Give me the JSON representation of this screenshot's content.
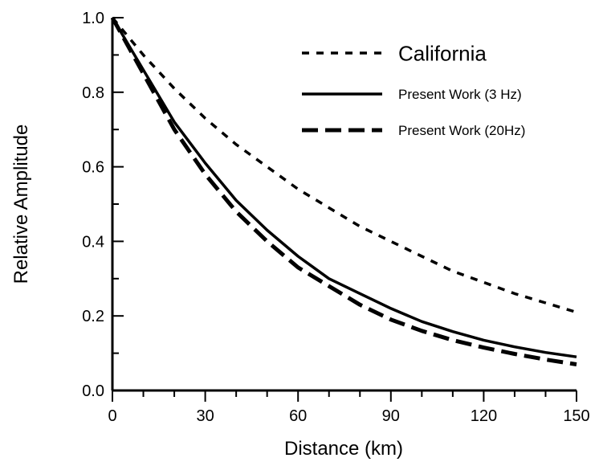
{
  "chart_data": {
    "type": "line",
    "title": "",
    "xlabel": "Distance (km)",
    "ylabel": "Relative Amplitude",
    "xlim": [
      0,
      150
    ],
    "ylim": [
      0,
      1.0
    ],
    "x_ticks": [
      0,
      30,
      60,
      90,
      120,
      150
    ],
    "x_tick_labels": [
      "0",
      "30",
      "60",
      "90",
      "120",
      "150"
    ],
    "y_ticks": [
      0.0,
      0.2,
      0.4,
      0.6,
      0.8,
      1.0
    ],
    "y_tick_labels": [
      "0.0",
      "0.2",
      "0.4",
      "0.6",
      "0.8",
      "1.0"
    ],
    "x_minor_step": 10,
    "y_minor_step": 0.1,
    "grid": false,
    "legend_position": "top-right",
    "series": [
      {
        "name": "California",
        "style": "dotted",
        "color": "#000000",
        "x": [
          0,
          10,
          20,
          30,
          40,
          50,
          60,
          70,
          80,
          90,
          100,
          110,
          120,
          130,
          140,
          150
        ],
        "y": [
          1.0,
          0.9,
          0.81,
          0.73,
          0.66,
          0.6,
          0.54,
          0.49,
          0.44,
          0.4,
          0.36,
          0.32,
          0.29,
          0.26,
          0.235,
          0.21
        ]
      },
      {
        "name": "Present Work (3 Hz)",
        "style": "solid",
        "color": "#000000",
        "x": [
          0,
          10,
          20,
          30,
          40,
          50,
          60,
          70,
          80,
          90,
          100,
          110,
          120,
          130,
          140,
          150
        ],
        "y": [
          1.0,
          0.86,
          0.72,
          0.61,
          0.51,
          0.43,
          0.36,
          0.3,
          0.26,
          0.22,
          0.185,
          0.158,
          0.135,
          0.117,
          0.102,
          0.09
        ]
      },
      {
        "name": "Present Work (20Hz)",
        "style": "dashed",
        "color": "#000000",
        "x": [
          0,
          10,
          20,
          30,
          40,
          50,
          60,
          70,
          80,
          90,
          100,
          110,
          120,
          130,
          140,
          150
        ],
        "y": [
          1.0,
          0.85,
          0.7,
          0.58,
          0.48,
          0.4,
          0.33,
          0.28,
          0.23,
          0.19,
          0.16,
          0.135,
          0.115,
          0.098,
          0.083,
          0.07
        ]
      }
    ]
  }
}
